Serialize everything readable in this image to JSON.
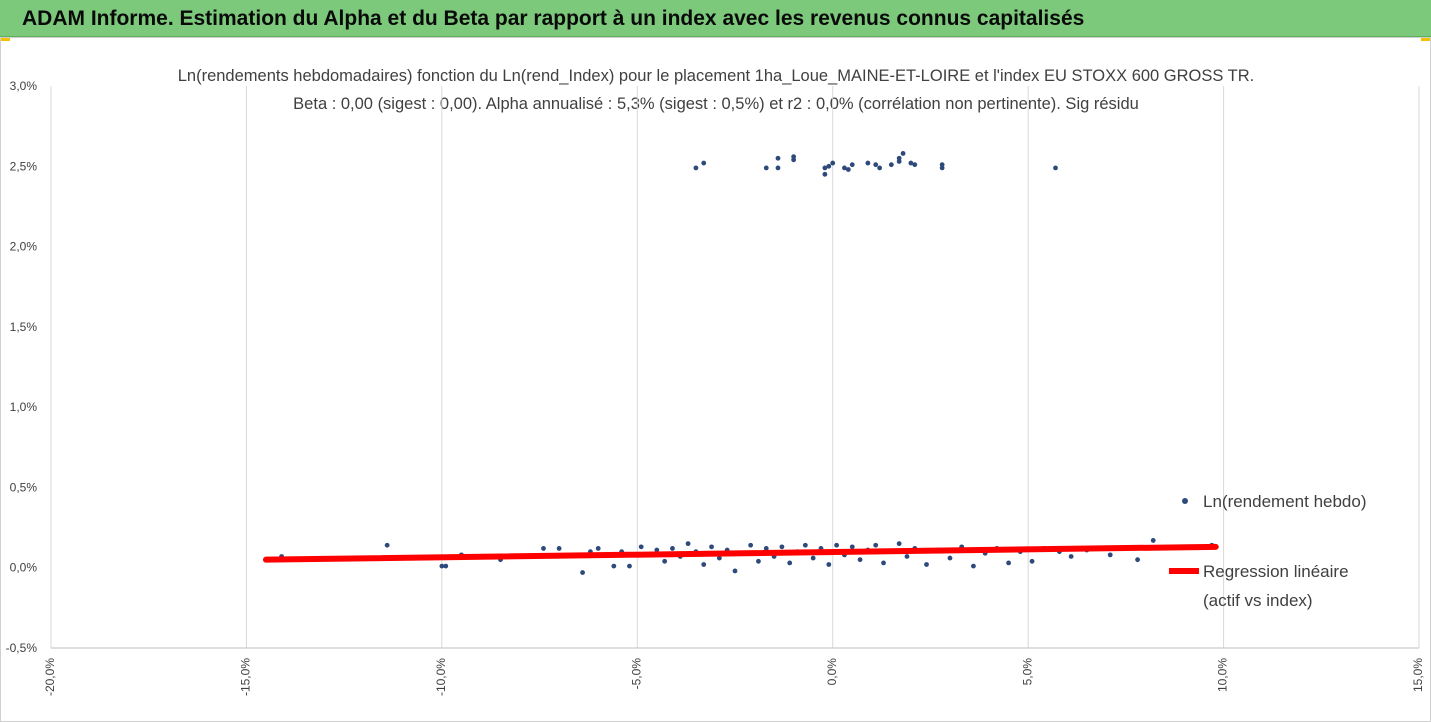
{
  "banner": {
    "title": "ADAM Informe. Estimation du Alpha et du Beta par rapport à un index avec les revenus connus capitalisés",
    "background": "#7cc97b",
    "corner_accent": "#f5c000"
  },
  "chart_data": {
    "type": "scatter",
    "title": "Ln(rendements hebdomadaires) fonction du Ln(rend_Index) pour le placement 1ha_Loue_MAINE-ET-LOIRE et l'index EU STOXX 600 GROSS TR.",
    "subtitle": "Beta : 0,00 (sigest : 0,00).  Alpha annualisé : 5,3% (sigest : 0,5%) et r2 : 0,0% (corrélation non pertinente). Sig résidu",
    "xlabel": "",
    "ylabel": "",
    "xlim": [
      -20,
      15
    ],
    "ylim": [
      -0.5,
      3.0
    ],
    "x_unit": "%",
    "y_unit": "%",
    "x_ticks": [
      "-20,0%",
      "-15,0%",
      "-10,0%",
      "-5,0%",
      "0,0%",
      "5,0%",
      "10,0%",
      "15,0%"
    ],
    "y_ticks": [
      "3,0%",
      "2,5%",
      "2,0%",
      "1,5%",
      "1,0%",
      "0,5%",
      "0,0%",
      "-0,5%"
    ],
    "grid": {
      "vertical": true,
      "horizontal": false
    },
    "legend_position": "right",
    "series": [
      {
        "name": "Ln(rendement hebdo)",
        "kind": "points",
        "color": "#2e4a7a",
        "points": [
          [
            -14.5,
            0.05
          ],
          [
            -14.1,
            0.07
          ],
          [
            -11.4,
            0.14
          ],
          [
            -10.0,
            0.01
          ],
          [
            -9.9,
            0.01
          ],
          [
            -9.5,
            0.08
          ],
          [
            -8.5,
            0.05
          ],
          [
            -7.4,
            0.12
          ],
          [
            -7.0,
            0.12
          ],
          [
            -6.4,
            -0.03
          ],
          [
            -6.2,
            0.1
          ],
          [
            -6.0,
            0.12
          ],
          [
            -5.8,
            0.08
          ],
          [
            -5.6,
            0.01
          ],
          [
            -5.4,
            0.1
          ],
          [
            -5.2,
            0.01
          ],
          [
            -4.9,
            0.13
          ],
          [
            -4.7,
            0.08
          ],
          [
            -4.5,
            0.11
          ],
          [
            -4.3,
            0.04
          ],
          [
            -4.1,
            0.12
          ],
          [
            -3.9,
            0.07
          ],
          [
            -3.7,
            0.15
          ],
          [
            -3.5,
            0.1
          ],
          [
            -3.3,
            0.02
          ],
          [
            -3.1,
            0.13
          ],
          [
            -2.9,
            0.06
          ],
          [
            -2.7,
            0.11
          ],
          [
            -2.5,
            -0.02
          ],
          [
            -2.3,
            0.09
          ],
          [
            -2.1,
            0.14
          ],
          [
            -1.9,
            0.04
          ],
          [
            -1.7,
            0.12
          ],
          [
            -1.5,
            0.07
          ],
          [
            -1.3,
            0.13
          ],
          [
            -1.1,
            0.03
          ],
          [
            -0.9,
            0.1
          ],
          [
            -0.7,
            0.14
          ],
          [
            -0.5,
            0.06
          ],
          [
            -0.3,
            0.12
          ],
          [
            -0.1,
            0.02
          ],
          [
            0.1,
            0.14
          ],
          [
            0.3,
            0.08
          ],
          [
            0.5,
            0.13
          ],
          [
            0.7,
            0.05
          ],
          [
            0.9,
            0.11
          ],
          [
            1.1,
            0.14
          ],
          [
            1.3,
            0.03
          ],
          [
            1.5,
            0.1
          ],
          [
            1.7,
            0.15
          ],
          [
            1.9,
            0.07
          ],
          [
            2.1,
            0.12
          ],
          [
            2.4,
            0.02
          ],
          [
            2.7,
            0.11
          ],
          [
            3.0,
            0.06
          ],
          [
            3.3,
            0.13
          ],
          [
            3.6,
            0.01
          ],
          [
            3.9,
            0.09
          ],
          [
            4.2,
            0.12
          ],
          [
            4.5,
            0.03
          ],
          [
            4.8,
            0.1
          ],
          [
            5.1,
            0.04
          ],
          [
            5.4,
            0.12
          ],
          [
            5.8,
            0.1
          ],
          [
            6.1,
            0.07
          ],
          [
            6.5,
            0.11
          ],
          [
            7.1,
            0.08
          ],
          [
            7.8,
            0.05
          ],
          [
            8.2,
            0.17
          ],
          [
            9.7,
            0.14
          ],
          [
            -3.5,
            2.49
          ],
          [
            -3.3,
            2.52
          ],
          [
            -1.7,
            2.49
          ],
          [
            -1.4,
            2.55
          ],
          [
            -1.4,
            2.49
          ],
          [
            -1.0,
            2.56
          ],
          [
            -1.0,
            2.54
          ],
          [
            -0.2,
            2.45
          ],
          [
            -0.2,
            2.49
          ],
          [
            -0.1,
            2.5
          ],
          [
            0.0,
            2.52
          ],
          [
            0.3,
            2.49
          ],
          [
            0.4,
            2.48
          ],
          [
            0.5,
            2.51
          ],
          [
            0.9,
            2.52
          ],
          [
            1.1,
            2.51
          ],
          [
            1.2,
            2.49
          ],
          [
            1.5,
            2.51
          ],
          [
            1.7,
            2.53
          ],
          [
            1.7,
            2.55
          ],
          [
            1.8,
            2.58
          ],
          [
            2.0,
            2.52
          ],
          [
            2.1,
            2.51
          ],
          [
            2.8,
            2.51
          ],
          [
            2.8,
            2.49
          ],
          [
            5.7,
            2.49
          ]
        ]
      },
      {
        "name": "Regression linéaire (actif vs index)",
        "kind": "line",
        "color": "#ff0000",
        "points": [
          [
            -14.5,
            0.05
          ],
          [
            9.8,
            0.13
          ]
        ]
      }
    ],
    "legend": [
      {
        "marker": "dot",
        "lines": [
          "Ln(rendement hebdo)"
        ]
      },
      {
        "marker": "line",
        "lines": [
          "Regression linéaire",
          "(actif vs index)"
        ]
      }
    ]
  }
}
